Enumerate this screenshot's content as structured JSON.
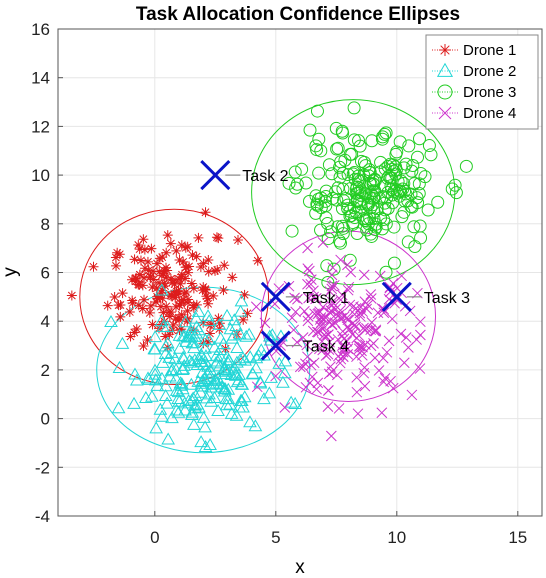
{
  "chart_data": {
    "type": "scatter",
    "title": "Task Allocation Confidence Ellipses",
    "xlabel": "x",
    "ylabel": "y",
    "xlim": [
      -4,
      16
    ],
    "ylim": [
      -4,
      16
    ],
    "xticks": [
      0,
      5,
      10,
      15
    ],
    "yticks": [
      -4,
      -2,
      0,
      2,
      4,
      6,
      8,
      10,
      12,
      14,
      16
    ],
    "grid": true,
    "legend_position": "top-right",
    "series": [
      {
        "name": "Drone 1",
        "color": "#dd1c1c",
        "marker": "star",
        "center": [
          0.8,
          5.2
        ],
        "spread": [
          1.3,
          1.1
        ],
        "count": 180,
        "ellipse": {
          "center": [
            0.8,
            5.0
          ],
          "rx": 3.9,
          "ry": 3.6
        }
      },
      {
        "name": "Drone 2",
        "color": "#22d6d6",
        "marker": "triangle",
        "center": [
          2.0,
          2.0
        ],
        "spread": [
          1.4,
          1.2
        ],
        "count": 230,
        "ellipse": {
          "center": [
            2.0,
            2.0
          ],
          "rx": 4.4,
          "ry": 3.4
        }
      },
      {
        "name": "Drone 3",
        "color": "#22cc22",
        "marker": "circle",
        "center": [
          8.8,
          9.2
        ],
        "spread": [
          1.4,
          1.2
        ],
        "count": 230,
        "ellipse": {
          "center": [
            8.2,
            9.3
          ],
          "rx": 4.2,
          "ry": 3.8
        }
      },
      {
        "name": "Drone 4",
        "color": "#cc33cc",
        "marker": "x",
        "center": [
          7.8,
          3.6
        ],
        "spread": [
          1.5,
          1.3
        ],
        "count": 210,
        "ellipse": {
          "center": [
            8.0,
            4.2
          ],
          "rx": 3.6,
          "ry": 3.5
        }
      }
    ],
    "tasks": [
      {
        "name": "Task 1",
        "x": 5.0,
        "y": 5.0
      },
      {
        "name": "Task 2",
        "x": 2.5,
        "y": 10.0
      },
      {
        "name": "Task 3",
        "x": 10.0,
        "y": 5.0
      },
      {
        "name": "Task 4",
        "x": 5.0,
        "y": 3.0
      }
    ],
    "task_marker_color": "#0a14c8"
  }
}
